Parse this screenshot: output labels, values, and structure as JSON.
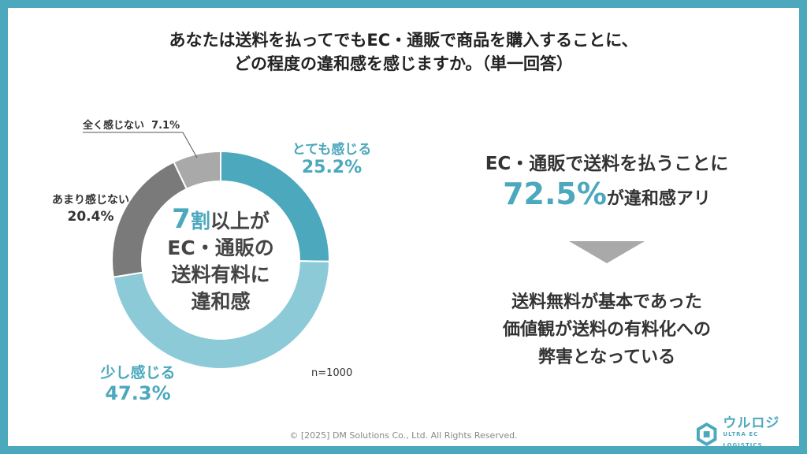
{
  "title_line1": "あなたは送料を払ってでもEC・通販で商品を購入することに、",
  "title_line2": "どの程度の違和感を感じますか。（単一回答）",
  "center": {
    "num": "7",
    "line1_rest": "割",
    "line1_tail": "以上が",
    "line2": "EC・通販の",
    "line3": "送料有料に",
    "line4": "違和感"
  },
  "chart_data": {
    "type": "pie",
    "donut": true,
    "categories": [
      "とても感じる",
      "少し感じる",
      "あまり感じない",
      "全く感じない"
    ],
    "values": [
      25.2,
      47.3,
      20.4,
      7.1
    ],
    "value_labels": [
      "25.2%",
      "47.3%",
      "20.4%",
      "7.1%"
    ],
    "colors": [
      "#4ba8bd",
      "#8ccad8",
      "#7a7a7a",
      "#a9a9a9"
    ],
    "unit": "%"
  },
  "sample_size": "n=1000",
  "right": {
    "line1": "EC・通販で送料を払うことに",
    "big_pct": "72.5%",
    "line2_tail": "が違和感アリ",
    "line3": "送料無料が基本であった",
    "line4": "価値観が送料の有料化への",
    "line5": "弊害となっている"
  },
  "footer": "© [2025] DM Solutions Co., Ltd. All Rights Reserved.",
  "logo": {
    "main": "ウルロジ",
    "sub": "ULTRA EC LOGISTICS",
    "color": "#4ba8bd"
  }
}
